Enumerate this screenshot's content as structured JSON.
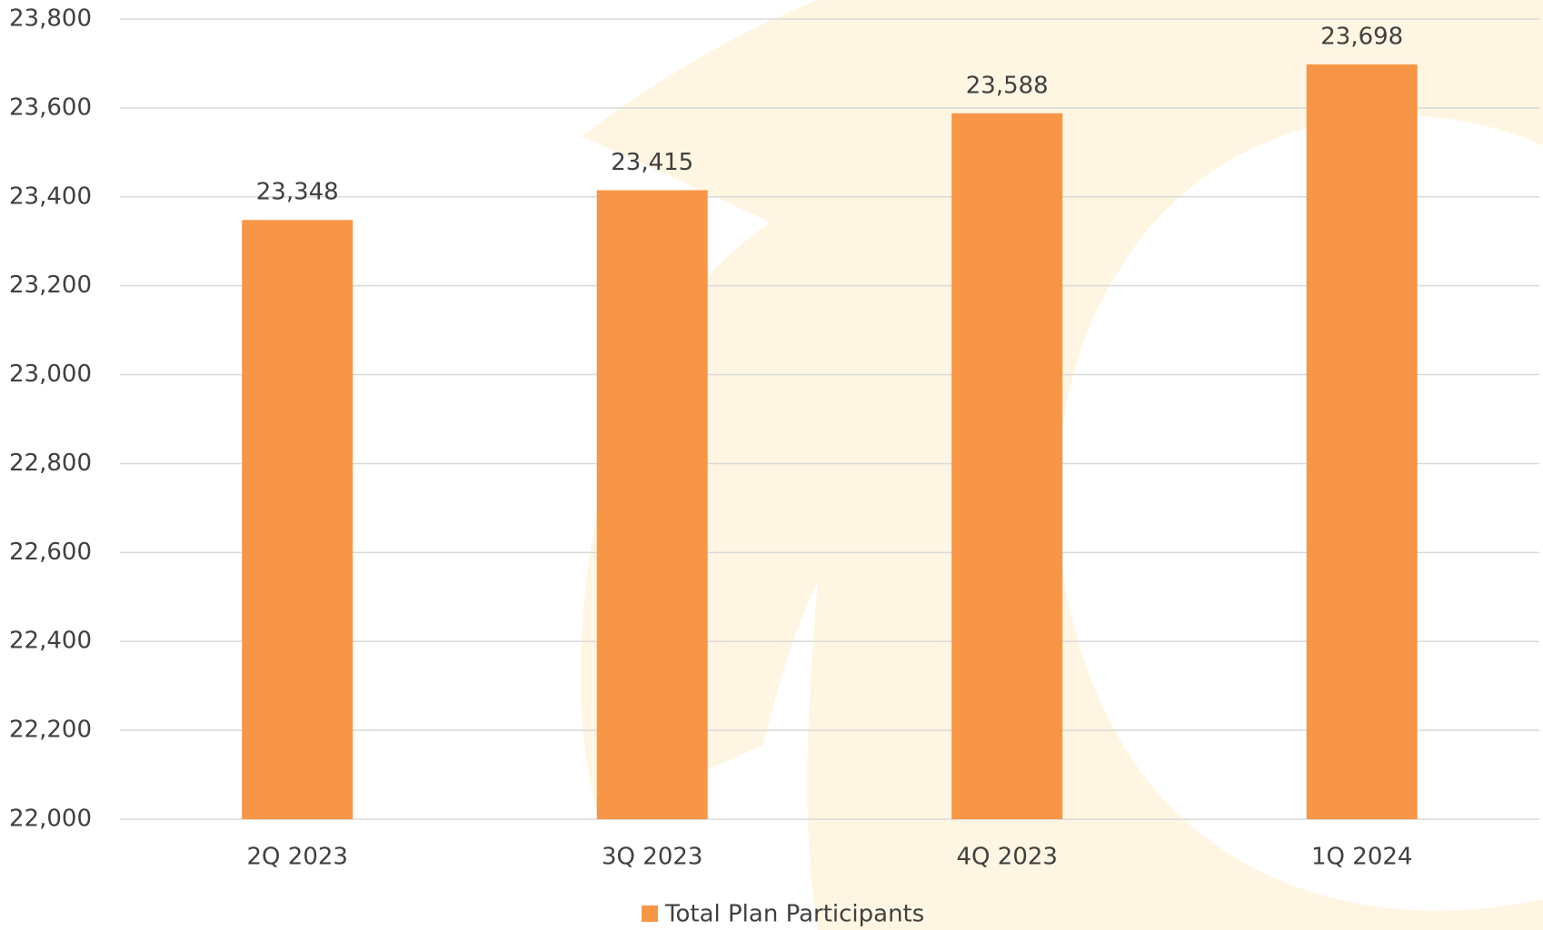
{
  "chart_data": {
    "type": "bar",
    "categories": [
      "2Q 2023",
      "3Q 2023",
      "4Q 2023",
      "1Q 2024"
    ],
    "series": [
      {
        "name": "Total Plan Participants",
        "color": "#f79646",
        "values": [
          23348,
          23415,
          23588,
          23698
        ],
        "value_labels": [
          "23,348",
          "23,415",
          "23,588",
          "23,698"
        ]
      }
    ],
    "ylim": [
      22000,
      23800
    ],
    "yticks": [
      {
        "value": 22000,
        "label": "22,000"
      },
      {
        "value": 22200,
        "label": "22,200"
      },
      {
        "value": 22400,
        "label": "22,400"
      },
      {
        "value": 22600,
        "label": "22,600"
      },
      {
        "value": 22800,
        "label": "22,800"
      },
      {
        "value": 23000,
        "label": "23,000"
      },
      {
        "value": 23200,
        "label": "23,200"
      },
      {
        "value": 23400,
        "label": "23,400"
      },
      {
        "value": 23600,
        "label": "23,600"
      },
      {
        "value": 23800,
        "label": "23,800"
      }
    ],
    "grid": true,
    "legend": "bottom"
  }
}
